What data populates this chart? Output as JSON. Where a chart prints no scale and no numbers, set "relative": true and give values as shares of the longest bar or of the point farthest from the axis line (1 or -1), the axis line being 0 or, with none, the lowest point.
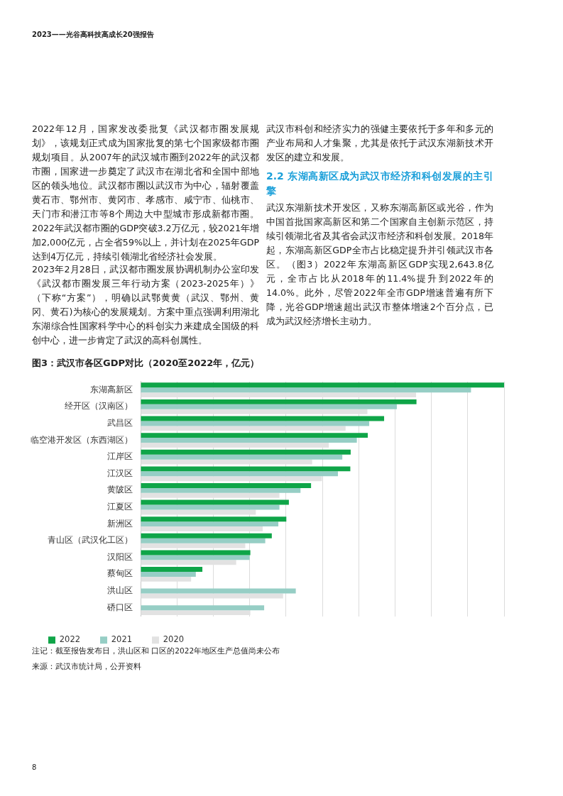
{
  "chart_data": {
    "type": "bar",
    "orientation": "horizontal",
    "relative": true,
    "title": "图3：武汉市各区GDP对比（2020至2022年，亿元）",
    "categories": [
      "东湖高新区",
      "经开区（汉南区）",
      "武昌区",
      "临空港开发区（东西湖区）",
      "江岸区",
      "江汉区",
      "黄陂区",
      "江夏区",
      "新洲区",
      "青山区（武汉化工区）",
      "汉阳区",
      "蔡甸区",
      "洪山区",
      "硚口区"
    ],
    "series": [
      {
        "name": "2022",
        "color": "#0fa548",
        "values": [
          1,
          0.759,
          0.67,
          0.625,
          0.578,
          0.577,
          0.469,
          0.408,
          0.401,
          0.361,
          0.302,
          0.17,
          null,
          null
        ]
      },
      {
        "name": "2021",
        "color": "#96cec5",
        "values": [
          0.909,
          0.705,
          0.629,
          0.595,
          0.555,
          0.543,
          0.44,
          0.382,
          0.379,
          0.343,
          0.3,
          0.152,
          0.427,
          0.34
        ]
      },
      {
        "name": "2020",
        "color": "#e2e2e2",
        "values": [
          0.758,
          0.624,
          0.564,
          0.518,
          0.472,
          0.499,
          0.382,
          0.317,
          0.336,
          0.288,
          0.263,
          0.139,
          0.392,
          0.302
        ]
      }
    ],
    "grid": "x",
    "legend": "bottom left",
    "annotations": [
      "2023——光谷高科技高成长20强报告",
      "2022年12月，国家发改委批复《武汉都市圈发展规划》，该规划正式成为国家批复的第七个国家级都市圈规划项目。从2007年的武汉城市圈到2022年的武汉都市圈，国家进一步奠定了武汉市在湖北省和全国中部地区的领头地位。武汉都市圈以武汉市为中心，辐射覆盖黄石市、鄂州市、黄冈市、孝感市、咸宁市、仙桃市、天门市和潜江市等8个周边大中型城市形成新都市圈。2022年武汉都市圈的GDP突破3.2万亿元，较2021年增加2,000亿元，占全省59%以上，并计划在2025年GDP达到4万亿元，持续引领湖北省经济社会发展。",
      "2023年2月28日，武汉都市圈发展协调机制办公室印发《武汉都市圈发展三年行动方案（2023-2025年）》（下称“方案”），明确以武鄂黄黄（武汉、鄂州、黄冈、黄石)为核心的发展规划。方案中重点强调利用湖北东湖综合性国家科学中心的科创实力来建成全国级的科创中心，进一步肯定了武汉的高科创属性。",
      "武汉市科创和经济实力的强健主要依托于多年和多元的产业布局和人才集聚，尤其是依托于武汉东湖新技术开发区的建立和发展。",
      "2.2 东湖高新区成为武汉市经济和科创发展的主引擎",
      "武汉东湖新技术开发区，又称东湖高新区或光谷，作为中国首批国家高新区和第二个国家自主创新示范区，持续引领湖北省及其省会武汉市经济和科创发展。2018年起，东湖高新区GDP全市占比稳定提升并引领武汉市各区。（图3）2022年东湖高新区GDP实现2,643.8亿元，全市占比从2018年的11.4%提升到2022年的14.0%。此外，尽管2022年全市GDP增速普遍有所下降，光谷GDP增速超出武汉市整体增速2个百分点，已成为武汉经济增长主动力。",
      "注记：截至报告发布日，洪山区和 口区的2022年地区生产总值尚未公布",
      "来源：武汉市统计局，公开资料",
      "8"
    ]
  }
}
